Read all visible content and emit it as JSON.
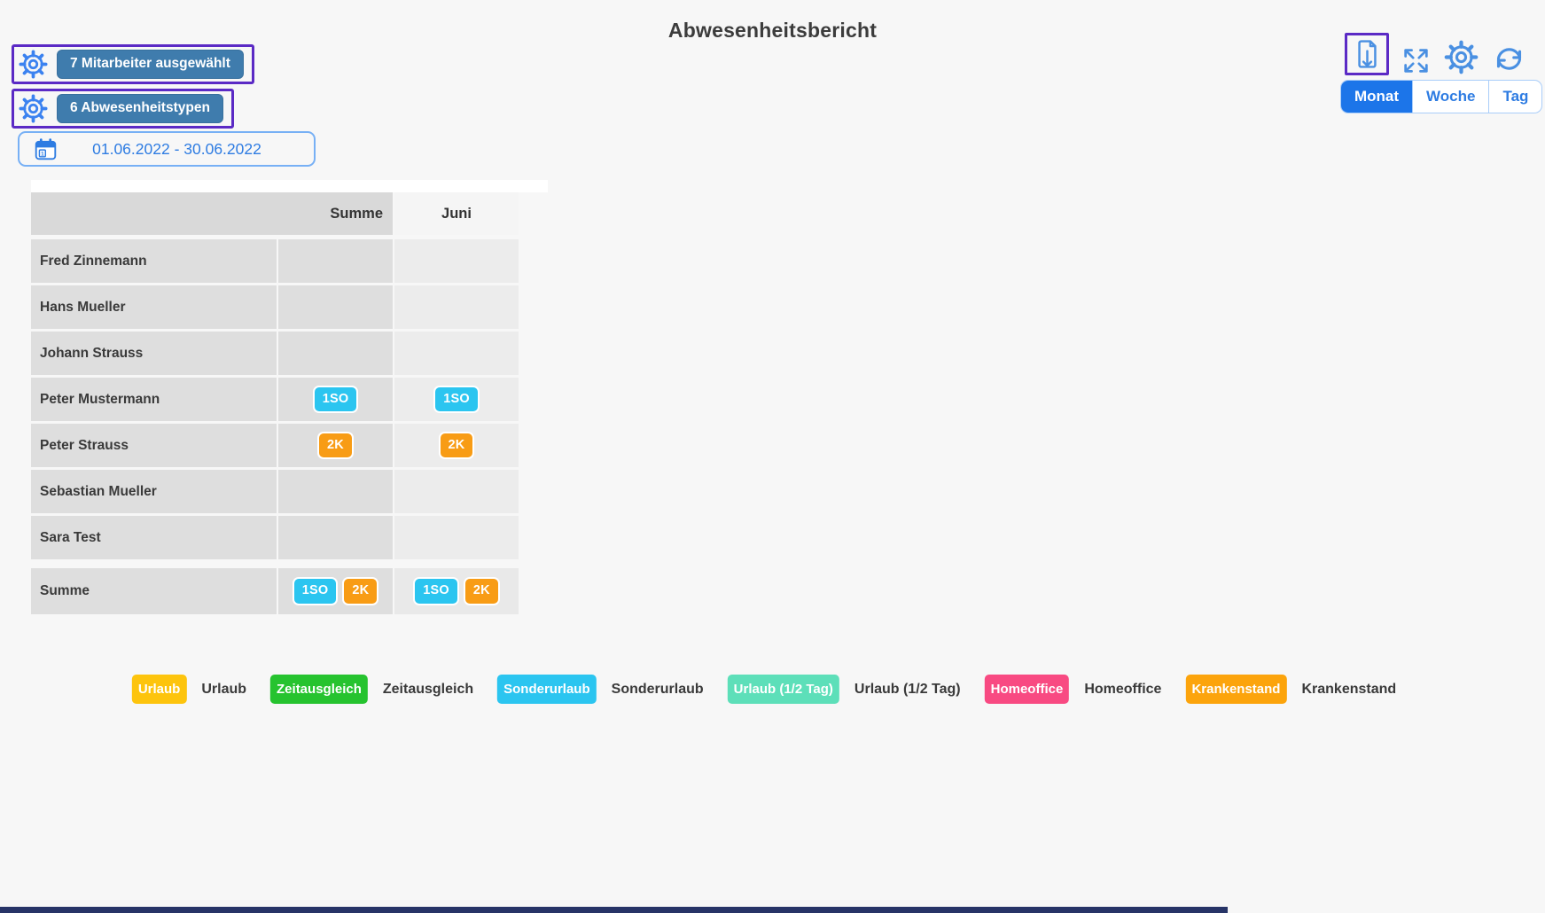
{
  "page": {
    "title": "Abwesenheitsbericht",
    "background": "#f7f7f7"
  },
  "toolbar_left": {
    "employees_button": {
      "label": "7 Mitarbeiter ausgewählt"
    },
    "absence_types_button": {
      "label": "6 Abwesenheitstypen"
    },
    "date_range": {
      "value": "01.06.2022 - 30.06.2022",
      "calendar_day": "1"
    }
  },
  "toolbar_right": {
    "icons": [
      "export-document",
      "expand",
      "settings",
      "refresh"
    ],
    "view_tabs": [
      {
        "label": "Monat",
        "active": true
      },
      {
        "label": "Woche",
        "active": false
      },
      {
        "label": "Tag",
        "active": false
      }
    ]
  },
  "table": {
    "columns": {
      "summe": "Summe",
      "month": "Juni"
    },
    "rows": [
      {
        "name": "Fred Zinnemann",
        "summe": [],
        "month": []
      },
      {
        "name": "Hans Mueller",
        "summe": [],
        "month": []
      },
      {
        "name": "Johann Strauss",
        "summe": [],
        "month": []
      },
      {
        "name": "Peter Mustermann",
        "summe": [
          {
            "label": "1SO",
            "color": "#2bc5f0"
          }
        ],
        "month": [
          {
            "label": "1SO",
            "color": "#2bc5f0"
          }
        ]
      },
      {
        "name": "Peter Strauss",
        "summe": [
          {
            "label": "2K",
            "color": "#f89c15"
          }
        ],
        "month": [
          {
            "label": "2K",
            "color": "#f89c15"
          }
        ]
      },
      {
        "name": "Sebastian Mueller",
        "summe": [],
        "month": []
      },
      {
        "name": "Sara Test",
        "summe": [],
        "month": []
      }
    ],
    "summary": {
      "name": "Summe",
      "summe": [
        {
          "label": "1SO",
          "color": "#2bc5f0"
        },
        {
          "label": "2K",
          "color": "#f89c15"
        }
      ],
      "month": [
        {
          "label": "1SO",
          "color": "#2bc5f0"
        },
        {
          "label": "2K",
          "color": "#f89c15"
        }
      ]
    }
  },
  "legend": [
    {
      "code": "U",
      "color": "#fdc40d",
      "label": "Urlaub"
    },
    {
      "code": "ZA",
      "color": "#26c32f",
      "label": "Zeitausgleich"
    },
    {
      "code": "SO",
      "color": "#2bc5f0",
      "label": "Sonderurlaub"
    },
    {
      "code": "U0.5",
      "color": "#5ddfb9",
      "label": "Urlaub (1/2 Tag)"
    },
    {
      "code": "HO",
      "color": "#f84a82",
      "label": "Homeoffice"
    },
    {
      "code": "K",
      "color": "#fca40c",
      "label": "Krankenstand"
    }
  ],
  "colors": {
    "accent_purple": "#5b2ac5",
    "button_blue": "#3f7cad",
    "link_blue": "#2e7ce2",
    "icon_blue": "#4a90e2",
    "tab_active_blue": "#1c75e9",
    "table_header_grey": "#d9d9d9",
    "table_cell_grey": "#dedede",
    "table_month_grey": "#ececec",
    "scrollbar_navy": "#273467"
  }
}
